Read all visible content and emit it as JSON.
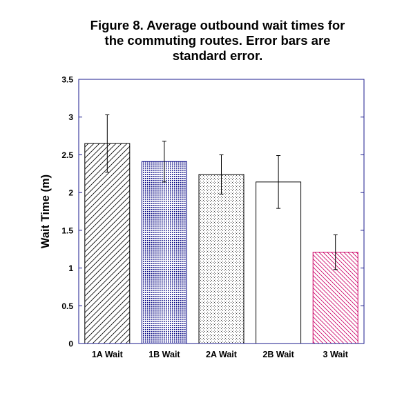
{
  "chart_data": {
    "type": "bar",
    "title": "Figure 8. Average outbound wait times for\nthe commuting routes. Error bars are\nstandard error.",
    "xlabel": "",
    "ylabel": "Wait Time (m)",
    "ylim": [
      0,
      3.5
    ],
    "yticks": [
      "0",
      "0.5",
      "1",
      "1.5",
      "2",
      "2.5",
      "3",
      "3.5"
    ],
    "categories": [
      "1A Wait",
      "1B Wait",
      "2A Wait",
      "2B Wait",
      "3 Wait"
    ],
    "values": [
      2.65,
      2.41,
      2.24,
      2.14,
      1.21
    ],
    "errors": [
      0.38,
      0.27,
      0.26,
      0.35,
      0.23
    ],
    "fills": [
      "diagonal-hatch",
      "dense-dots",
      "sparse-dots",
      "none",
      "diagonal-hatch-magenta"
    ],
    "axis_color": "#1a1a8c",
    "bar_colors": [
      "#000000",
      "#000080",
      "#000000",
      "#000000",
      "#cc0066"
    ],
    "grid": false,
    "legend": "none"
  }
}
